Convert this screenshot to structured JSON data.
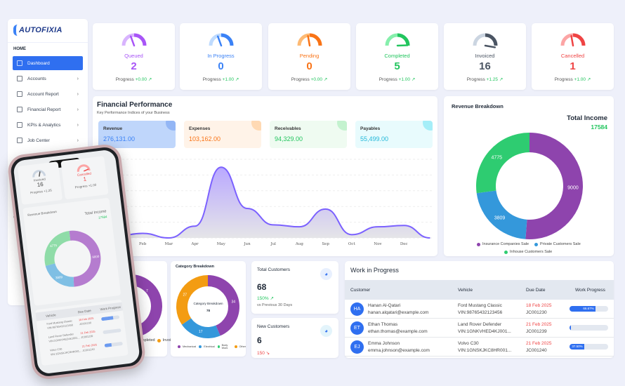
{
  "sidebar": {
    "logo": "AUTOFIXIA",
    "section": "HOME",
    "items": [
      {
        "label": "Dashboard"
      },
      {
        "label": "Accounts"
      },
      {
        "label": "Account Report"
      },
      {
        "label": "Financial Report"
      },
      {
        "label": "KPIs & Analytics"
      },
      {
        "label": "Job Center"
      }
    ],
    "section2_partial": "CO"
  },
  "stats": [
    {
      "label": "Queued",
      "value": "2",
      "progress_label": "Progress",
      "delta": "+0.00",
      "color": "#a855f7",
      "light": "#d8b4fe"
    },
    {
      "label": "In Progress",
      "value": "0",
      "progress_label": "Progress",
      "delta": "+1.00",
      "color": "#3b82f6",
      "light": "#bfdbfe"
    },
    {
      "label": "Pending",
      "value": "0",
      "progress_label": "Progress",
      "delta": "+0.00",
      "color": "#f97316",
      "light": "#fdba74"
    },
    {
      "label": "Completed",
      "value": "5",
      "progress_label": "Progress",
      "delta": "+1.00",
      "color": "#22c55e",
      "light": "#86efac"
    },
    {
      "label": "Invoiced",
      "value": "16",
      "progress_label": "Progress",
      "delta": "+1.25",
      "color": "#4b5563",
      "light": "#cbd5e1"
    },
    {
      "label": "Cancelled",
      "value": "1",
      "progress_label": "Progress",
      "delta": "+1.00",
      "color": "#ef4444",
      "light": "#fca5a5"
    }
  ],
  "financial": {
    "title": "Financial Performance",
    "subtitle": "Key Performance Indices of your Business",
    "kpis": [
      {
        "label": "Revenue",
        "value": "276,131.00",
        "color": "#3b82f6",
        "bg": "#bfd6fb",
        "circle": "#93b6f5"
      },
      {
        "label": "Expenses",
        "value": "103,162.00",
        "color": "#f97316",
        "bg": "#fff3e8",
        "circle": "#ffd9b3"
      },
      {
        "label": "Receivables",
        "value": "94,329.00",
        "color": "#22c55e",
        "bg": "#effbf1",
        "circle": "#c4f2cf"
      },
      {
        "label": "Payables",
        "value": "55,499.00",
        "color": "#22b8d9",
        "bg": "#e8fbfd",
        "circle": "#a5eef8"
      }
    ]
  },
  "chart_data": [
    {
      "type": "area",
      "title": "Financial Performance",
      "categories": [
        "",
        "Feb",
        "Mar",
        "Apr",
        "May",
        "Jun",
        "Jul",
        "Aug",
        "Sep",
        "Oct",
        "Nov",
        "Dec",
        ""
      ],
      "values": [
        3,
        7,
        0,
        18,
        108,
        45,
        20,
        17,
        44,
        5,
        17,
        19,
        0
      ],
      "ylim": [
        0,
        120
      ],
      "grid": true,
      "color": "#7b61ff"
    },
    {
      "type": "pie",
      "title": "Revenue Breakdown",
      "total_label": "Total Income",
      "total": "17584",
      "labels": [
        "Insurance Companies Sale",
        "Private Customers Sale",
        "Inhouse Customers Sale"
      ],
      "values": [
        9000,
        3809,
        4775
      ],
      "colors": [
        "#8e44ad",
        "#3498db",
        "#2ecc71"
      ]
    },
    {
      "type": "pie",
      "title": "Category Breakdown",
      "center_label": "Category Breakdown",
      "total": "78",
      "labels": [
        "Mechanical",
        "Electrical",
        "Body Work",
        "Other"
      ],
      "values": [
        34,
        17,
        0,
        27
      ],
      "colors": [
        "#8e44ad",
        "#3498db",
        "#2ecc71",
        "#f39c12"
      ]
    }
  ],
  "customers": {
    "total": {
      "title": "Total Customers",
      "value": "68",
      "pct": "150%",
      "note": "vs Previous 30 Days"
    },
    "new": {
      "title": "New Customers",
      "value": "6",
      "pct": "150"
    }
  },
  "wip": {
    "title": "Work in Progress",
    "columns": [
      "Customer",
      "Vehicle",
      "Due Date",
      "Work Progress"
    ],
    "rows": [
      {
        "initials": "HA",
        "name": "Hanan Al-Qatari",
        "email": "hanan.alqatari@example.com",
        "vehicle": "Ford Mustang Classic",
        "vin": "VIN:98765432123456",
        "due": "18 Feb 2025",
        "job": "JC001230",
        "progress": 66.67,
        "progress_label": "66.67%"
      },
      {
        "initials": "ET",
        "name": "Ethan Thomas",
        "email": "ethan.thomas@example.com",
        "vehicle": "Land Rover Defender",
        "vin": "VIN:1GNKVHED4KJ001...",
        "due": "21 Feb 2025",
        "job": "JC001239",
        "progress": 0,
        "progress_label": ""
      },
      {
        "initials": "EJ",
        "name": "Emma Johnson",
        "email": "emma.johnson@example.com",
        "vehicle": "Volvo C30",
        "vin": "VIN:1GNSKJKC8HR001...",
        "due": "21 Feb 2025",
        "job": "JC001240",
        "progress": 37.5,
        "progress_label": "37.50%"
      }
    ]
  },
  "partial_legend": [
    "Completed",
    "Invoiced"
  ],
  "partial_value": "7",
  "phone": {
    "cards": [
      {
        "label": "Invoiced",
        "value": "16",
        "progress": "Progress +1.25"
      },
      {
        "label": "Cancelled",
        "value": "1",
        "progress": "Progress +1.00"
      }
    ],
    "title": "Revenue Breakdown",
    "total_label": "Total Income",
    "total": "17584",
    "columns": [
      "Vehicle",
      "Due Date",
      "Work Progress"
    ]
  }
}
